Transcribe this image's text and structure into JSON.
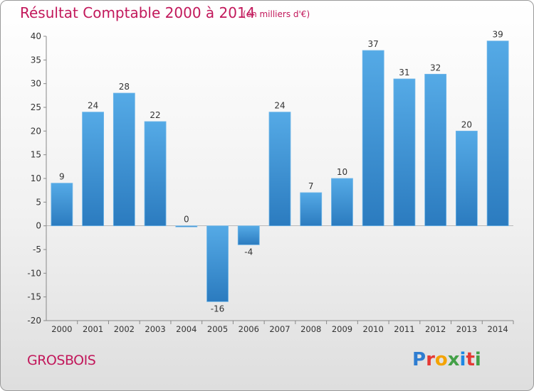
{
  "header": {
    "title": "Résultat Comptable 2000 à 2014",
    "subtitle": "(en milliers d'€)"
  },
  "footer": {
    "commune": "GROSBOIS",
    "logo_letters": [
      "P",
      "r",
      "o",
      "x",
      "i",
      "t",
      "i"
    ],
    "logo_colors": [
      "#2e7dd1",
      "#e53935",
      "#f4a300",
      "#43a047",
      "#1e88e5",
      "#e53935",
      "#43a047"
    ]
  },
  "chart_data": {
    "type": "bar",
    "title": "Résultat Comptable 2000 à 2014",
    "subtitle": "(en milliers d'€)",
    "categories": [
      "2000",
      "2001",
      "2002",
      "2003",
      "2004",
      "2005",
      "2006",
      "2007",
      "2008",
      "2009",
      "2010",
      "2011",
      "2012",
      "2013",
      "2014"
    ],
    "values": [
      9,
      24,
      28,
      22,
      0,
      -16,
      -4,
      24,
      7,
      10,
      37,
      31,
      32,
      20,
      39
    ],
    "ylim": [
      -20,
      40
    ],
    "yticks": [
      -20,
      -15,
      -10,
      -5,
      0,
      5,
      10,
      15,
      20,
      25,
      30,
      35,
      40
    ],
    "grid": false,
    "bar_color": "#2b7bbf",
    "bar_color_light": "#55aae6"
  }
}
